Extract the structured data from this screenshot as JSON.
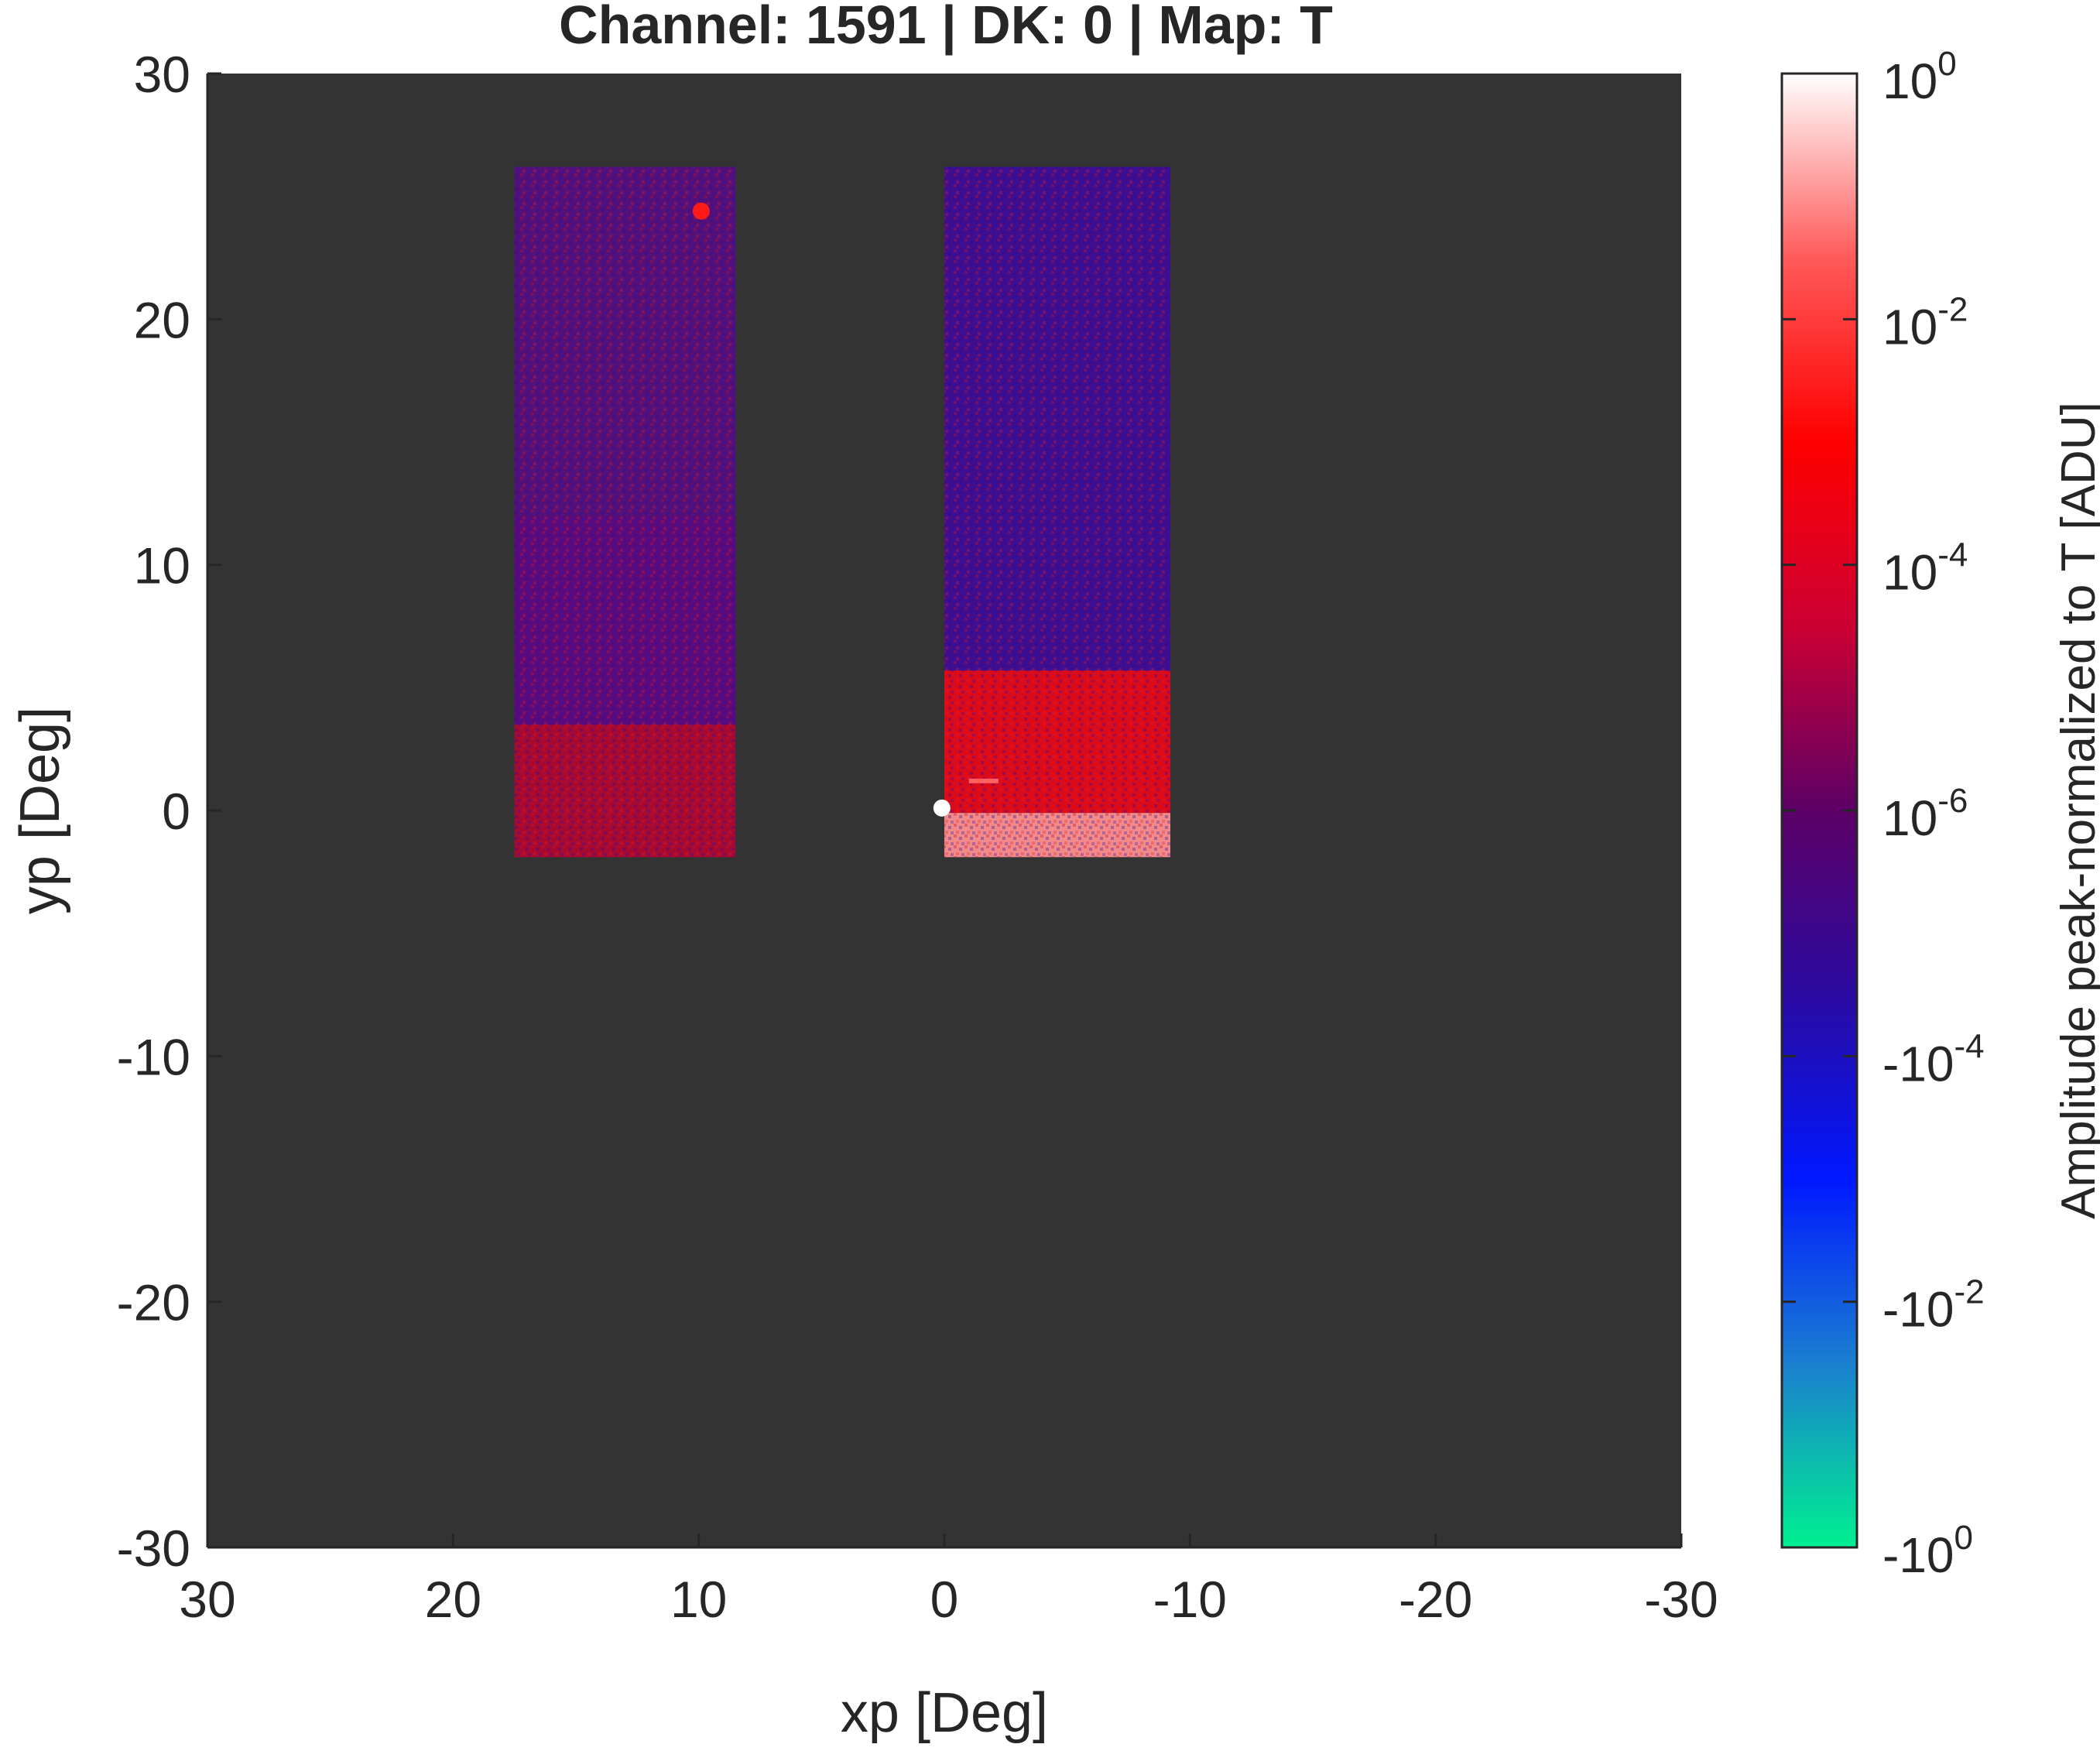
{
  "chart_data": {
    "type": "heatmap",
    "title": "Channel: 1591 | DK: 0 | Map: T",
    "xlabel": "xp [Deg]",
    "ylabel": "yp [Deg]",
    "xlim": [
      30,
      -30
    ],
    "ylim": [
      -30,
      30
    ],
    "x_reversed": true,
    "x_ticks": [
      30,
      20,
      10,
      0,
      -10,
      -20,
      -30
    ],
    "x_tick_labels": [
      "30",
      "20",
      "10",
      "0",
      "-10",
      "-20",
      "-30"
    ],
    "y_ticks": [
      30,
      20,
      10,
      0,
      -10,
      -20,
      -30
    ],
    "y_tick_labels": [
      "30",
      "20",
      "10",
      "0",
      "-10",
      "-20",
      "-30"
    ],
    "background_color": "#333333",
    "grid": false,
    "colorbar": {
      "label": "Amplitude peak-normalized to T [ADU]",
      "scale": "symlog",
      "position": "right",
      "ticks": [
        {
          "base": "10",
          "exp": "0"
        },
        {
          "base": "10",
          "exp": "-2"
        },
        {
          "base": "10",
          "exp": "-4"
        },
        {
          "base": "10",
          "exp": "-6"
        },
        {
          "base": "-10",
          "exp": "-4"
        },
        {
          "base": "-10",
          "exp": "-2"
        },
        {
          "base": "-10",
          "exp": "0"
        }
      ],
      "colors_top_to_bottom": [
        "#ffffff",
        "#ff5a5a",
        "#ff0000",
        "#cc0033",
        "#5c0066",
        "#2a0aa0",
        "#0018ff",
        "#1a7fd0",
        "#00f090"
      ]
    },
    "regions": [
      {
        "name": "left-detector-column",
        "x_range": [
          17.5,
          8.5
        ],
        "y_range": [
          -1.9,
          26.2
        ],
        "segments": [
          {
            "y_range": [
              -1.9,
              3.5
            ],
            "level": "1e-4",
            "color": "#a8092f"
          },
          {
            "y_range": [
              3.5,
              12
            ],
            "level": "1e-6",
            "color": "#5a0a7a"
          },
          {
            "y_range": [
              12,
              26.2
            ],
            "level": "1e-6",
            "color": "#521078"
          }
        ],
        "features": [
          {
            "type": "spot",
            "x": 9.9,
            "y": 24.4,
            "color": "#ff1a1a"
          }
        ]
      },
      {
        "name": "right-detector-column",
        "x_range": [
          0,
          -9.2
        ],
        "y_range": [
          -1.9,
          26.2
        ],
        "segments": [
          {
            "y_range": [
              -0.1,
              5.7
            ],
            "level": "1e-2",
            "color": "#dd0a18"
          },
          {
            "y_range": [
              5.7,
              26.2
            ],
            "level": "-1e-4",
            "color": "#3e0e8e"
          },
          {
            "y_range": [
              -1.9,
              -0.1
            ],
            "level": "1e0",
            "color": "#f28a8a"
          }
        ],
        "features": [
          {
            "type": "spot",
            "x": 0.1,
            "y": 0.1,
            "color": "#ffffff"
          },
          {
            "type": "line",
            "x_range": [
              -1.0,
              -2.2
            ],
            "y": 1.2,
            "color": "#ff6060"
          }
        ]
      }
    ]
  }
}
